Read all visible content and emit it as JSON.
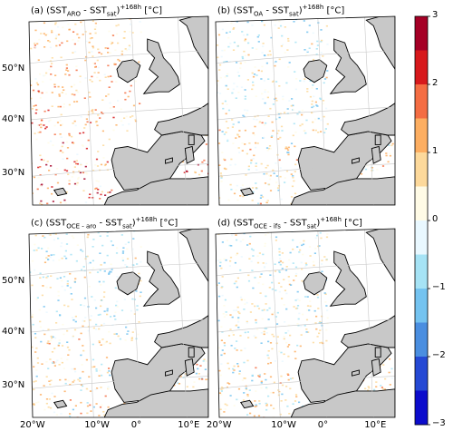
{
  "figure": {
    "panels": [
      {
        "id": "a",
        "prefix": "(a) (SST",
        "sub1": "ARO",
        "mid": " - SST",
        "sub2": "sat",
        "sup": "+168h",
        "unit": " [°C]",
        "pattern": "warm"
      },
      {
        "id": "b",
        "prefix": "(b) (SST",
        "sub1": "OA",
        "mid": " - SST",
        "sub2": "sat",
        "sup": "+168h",
        "unit": " [°C]",
        "pattern": "mixed"
      },
      {
        "id": "c",
        "prefix": "(c) (SST",
        "sub1": "OCE - aro",
        "mid": " - SST",
        "sub2": "sat",
        "sup": "+168h",
        "unit": " [°C]",
        "pattern": "mixed"
      },
      {
        "id": "d",
        "prefix": "(d) (SST",
        "sub1": "OCE - ifs",
        "mid": " - SST",
        "sub2": "sat",
        "sup": "+168h",
        "unit": " [°C]",
        "pattern": "mixed"
      }
    ],
    "lat_labels": [
      "50°N",
      "40°N",
      "30°N"
    ],
    "lon_labels": [
      "20°W",
      "10°W",
      "0°",
      "10°E"
    ],
    "colorbar": {
      "ticks": [
        "3",
        "2",
        "1",
        "0",
        "−1",
        "−2",
        "−3"
      ],
      "range": [
        -3,
        3
      ],
      "colors": [
        "#a50026",
        "#d7191c",
        "#f46d43",
        "#fdae61",
        "#fdd99b",
        "#fffbe6",
        "#e9f8ff",
        "#a6e3f5",
        "#74c3f0",
        "#4a8ee0",
        "#2549d4",
        "#0c0ccc"
      ]
    },
    "colors": {
      "land": "#c8c8c8",
      "ocean": "#ffffff",
      "coast": "#000000",
      "grid": "#c8c8c8"
    }
  }
}
